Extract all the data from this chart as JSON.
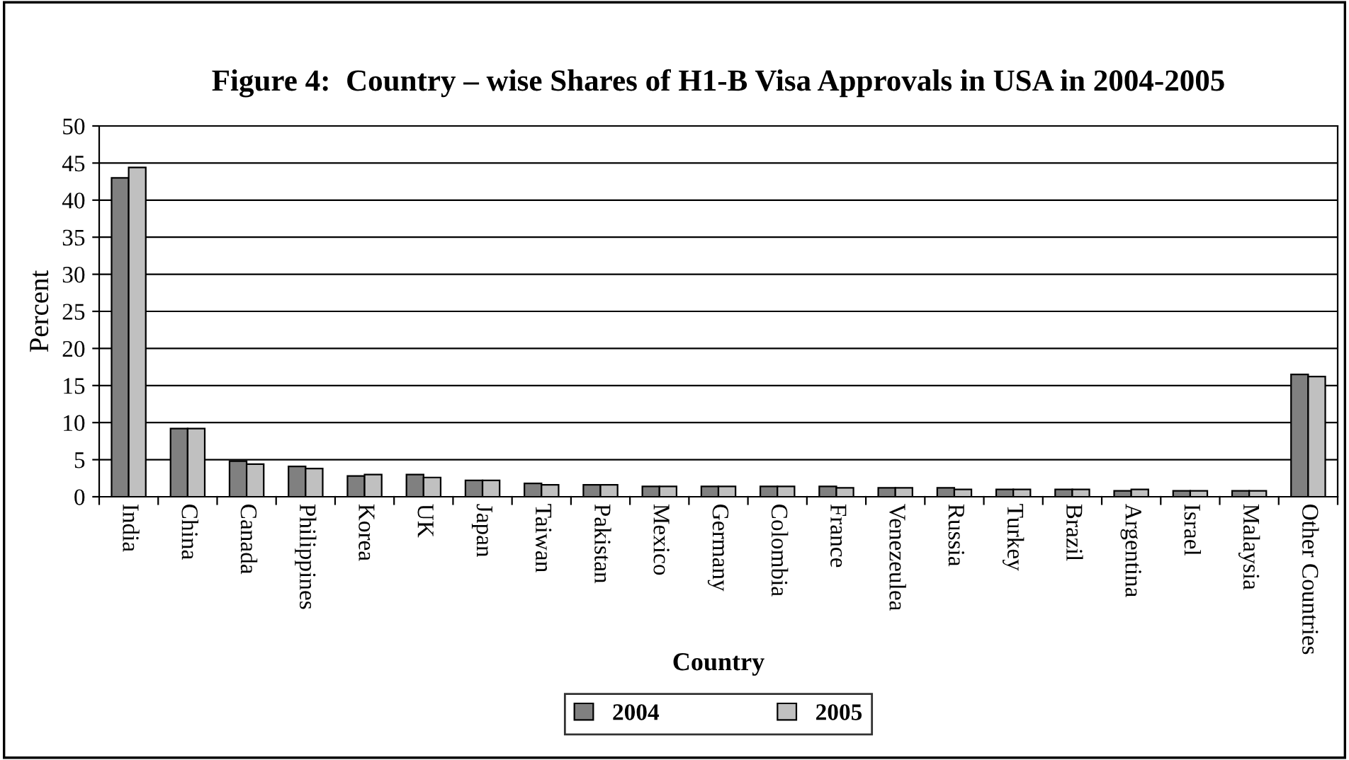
{
  "chart_data": {
    "type": "bar",
    "title": "Figure 4:  Country – wise Shares of H1-B Visa Approvals in USA in 2004-2005",
    "xlabel": "Country",
    "ylabel": "Percent",
    "categories": [
      "India",
      "China",
      "Canada",
      "Philippines",
      "Korea",
      "UK",
      "Japan",
      "Taiwan",
      "Pakistan",
      "Mexico",
      "Germany",
      "Colombia",
      "France",
      "Venezeulea",
      "Russia",
      "Turkey",
      "Brazil",
      "Argentina",
      "Israel",
      "Malaysia",
      "Other Countries"
    ],
    "series": [
      {
        "name": "2004",
        "color": "#808080",
        "values": [
          43,
          9.2,
          4.8,
          4.1,
          2.8,
          3.0,
          2.2,
          1.8,
          1.6,
          1.4,
          1.4,
          1.4,
          1.4,
          1.2,
          1.2,
          1.0,
          1.0,
          0.8,
          0.8,
          0.8,
          16.5
        ]
      },
      {
        "name": "2005",
        "color": "#c0c0c0",
        "values": [
          44.4,
          9.2,
          4.4,
          3.8,
          3.0,
          2.6,
          2.2,
          1.6,
          1.6,
          1.4,
          1.4,
          1.4,
          1.2,
          1.2,
          1.0,
          1.0,
          1.0,
          1.0,
          0.8,
          0.8,
          16.2
        ]
      }
    ],
    "ylim": [
      0,
      50
    ],
    "yticks": [
      0,
      5,
      10,
      15,
      20,
      25,
      30,
      35,
      40,
      45,
      50
    ],
    "grid": "y",
    "legend": "bottom"
  }
}
